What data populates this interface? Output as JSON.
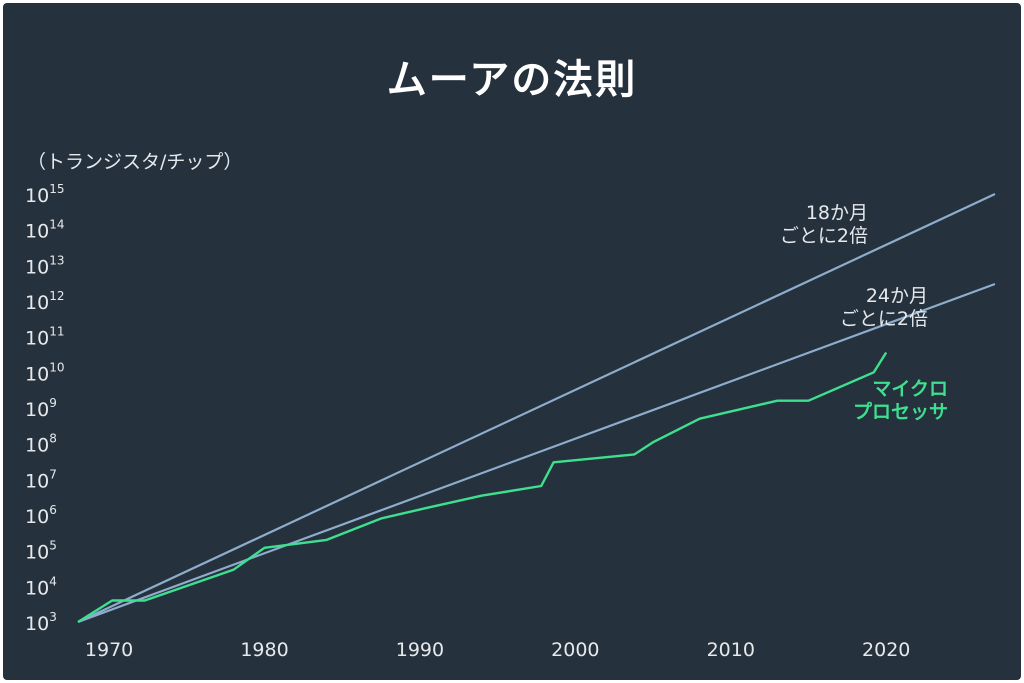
{
  "chart_data": {
    "type": "line",
    "title": "ムーアの法則",
    "ylabel": "（トランジスタ/チップ）",
    "xlabel": "",
    "y_scale": "log10",
    "xlim": [
      1968,
      2027
    ],
    "ylim_exponent": [
      3,
      15
    ],
    "x_ticks": [
      1970,
      1980,
      1990,
      2000,
      2010,
      2020
    ],
    "y_ticks": [
      {
        "base": "10",
        "exp": "3"
      },
      {
        "base": "10",
        "exp": "4"
      },
      {
        "base": "10",
        "exp": "5"
      },
      {
        "base": "10",
        "exp": "6"
      },
      {
        "base": "10",
        "exp": "7"
      },
      {
        "base": "10",
        "exp": "8"
      },
      {
        "base": "10",
        "exp": "9"
      },
      {
        "base": "10",
        "exp": "10"
      },
      {
        "base": "10",
        "exp": "11"
      },
      {
        "base": "10",
        "exp": "12"
      },
      {
        "base": "10",
        "exp": "13"
      },
      {
        "base": "10",
        "exp": "14"
      },
      {
        "base": "10",
        "exp": "15"
      }
    ],
    "grid": false,
    "colors": {
      "trend": "#8eaccb",
      "micro": "#3ee08f",
      "background": "#25313c"
    },
    "series": [
      {
        "name": "18か月ごとに2倍",
        "label_lines": [
          "18か月",
          "ごとに2倍"
        ],
        "points": [
          [
            1968,
            1000
          ],
          [
            2027,
            1000000000000000
          ]
        ]
      },
      {
        "name": "24か月ごとに2倍",
        "label_lines": [
          "24か月",
          "ごとに2倍"
        ],
        "points": [
          [
            1968,
            1000
          ],
          [
            2027,
            3000000000000
          ]
        ]
      },
      {
        "name": "マイクロプロセッサ",
        "label_lines": [
          "マイクロ",
          "プロセッサ"
        ],
        "points": [
          [
            1968,
            1000
          ],
          [
            1970.2,
            4000
          ],
          [
            1972.3,
            4000
          ],
          [
            1978,
            29000
          ],
          [
            1980,
            120000
          ],
          [
            1984,
            200000
          ],
          [
            1987.5,
            800000
          ],
          [
            1990.5,
            1600000
          ],
          [
            1994,
            3500000
          ],
          [
            1997.8,
            6500000
          ],
          [
            1998.6,
            30000000
          ],
          [
            2003.8,
            50000000
          ],
          [
            2005,
            110000000
          ],
          [
            2008,
            500000000
          ],
          [
            2013,
            1600000000
          ],
          [
            2015,
            1600000000
          ],
          [
            2019.2,
            10000000000
          ],
          [
            2020,
            36000000000
          ]
        ]
      }
    ]
  }
}
